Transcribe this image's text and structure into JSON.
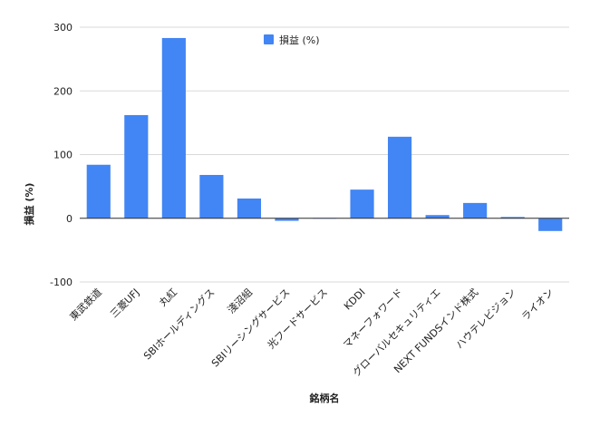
{
  "chart_data": {
    "type": "bar",
    "title": "",
    "xlabel": "銘柄名",
    "ylabel": "損益 (%)",
    "ylim": [
      -100,
      300
    ],
    "yticks": [
      -100,
      0,
      100,
      200,
      300
    ],
    "grid": true,
    "legend_position": "top-center",
    "bar_color": "#4285f4",
    "categories": [
      "東武鉄道",
      "三菱UFJ",
      "丸紅",
      "SBIホールディングス",
      "淺沼組",
      "SBIリーシングサービス",
      "光フードサービス",
      "KDDI",
      "マネーフォワード",
      "グローバルセキュリティエ",
      "NEXT FUNDSインド株式",
      "ハウテレビジョン",
      "ライオン"
    ],
    "series": [
      {
        "name": "損益 (%)",
        "values": [
          84,
          162,
          283,
          68,
          31,
          -4,
          0.5,
          45,
          128,
          5,
          24,
          2,
          -20
        ]
      }
    ]
  }
}
